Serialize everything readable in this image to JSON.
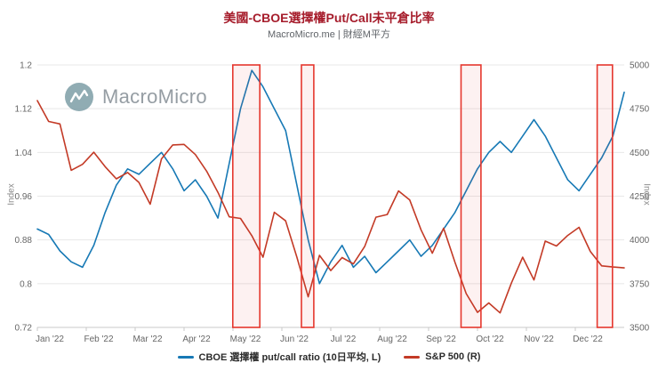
{
  "header": {
    "title": "美國-CBOE選擇權Put/Call未平倉比率",
    "subtitle": "MacroMicro.me | 財經M平方"
  },
  "watermark": {
    "text": "MacroMicro",
    "logo": "macromicro-wave-circle"
  },
  "colors": {
    "title": "#a61c2b",
    "series_blue": "#1779b5",
    "series_red": "#c33a26",
    "band_fill": "rgba(232,62,54,0.07)",
    "band_border": "#e5372e",
    "grid": "#e8e8e8",
    "tick_text": "#666666"
  },
  "chart_data": {
    "type": "line",
    "title": "美國-CBOE選擇權Put/Call未平倉比率",
    "subtitle": "MacroMicro.me | 財經M平方",
    "grid": "horizontal",
    "legend_position": "bottom",
    "x_tick_labels": [
      "Jan '22",
      "Feb '22",
      "Mar '22",
      "Apr '22",
      "May '22",
      "Jun '22",
      "Jul '22",
      "Aug '22",
      "Sep '22",
      "Oct '22",
      "Nov '22",
      "Dec '22"
    ],
    "left_axis": {
      "label": "Index",
      "range": [
        0.72,
        1.2
      ],
      "ticks": [
        "1.2",
        "1.12",
        "1.04",
        "0.96",
        "0.88",
        "0.8",
        "0.72"
      ]
    },
    "right_axis": {
      "label": "Index",
      "range": [
        3500,
        5000
      ],
      "ticks": [
        "5000",
        "4750",
        "4500",
        "4250",
        "4000",
        "3750",
        "3500"
      ]
    },
    "series": [
      {
        "name": "CBOE 選擇權 put/call ratio (10日平均, L)",
        "axis": "left",
        "color": "#1779b5",
        "values": [
          0.9,
          0.89,
          0.86,
          0.84,
          0.83,
          0.87,
          0.93,
          0.98,
          1.01,
          1.0,
          1.02,
          1.04,
          1.01,
          0.97,
          0.99,
          0.96,
          0.92,
          1.02,
          1.12,
          1.19,
          1.16,
          1.12,
          1.08,
          0.98,
          0.88,
          0.8,
          0.84,
          0.87,
          0.83,
          0.85,
          0.82,
          0.84,
          0.86,
          0.88,
          0.85,
          0.87,
          0.9,
          0.93,
          0.97,
          1.01,
          1.04,
          1.06,
          1.04,
          1.07,
          1.1,
          1.07,
          1.03,
          0.99,
          0.97,
          1.0,
          1.03,
          1.07,
          1.15
        ]
      },
      {
        "name": "S&P 500 (R)",
        "axis": "right",
        "color": "#c33a26",
        "values": [
          4796,
          4677,
          4663,
          4398,
          4432,
          4501,
          4419,
          4349,
          4385,
          4329,
          4204,
          4463,
          4543,
          4546,
          4488,
          4393,
          4272,
          4132,
          4123,
          4024,
          3901,
          4158,
          4109,
          3901,
          3675,
          3912,
          3825,
          3899,
          3863,
          3962,
          4130,
          4145,
          4280,
          4228,
          4058,
          3924,
          4067,
          3873,
          3693,
          3586,
          3640,
          3583,
          3753,
          3901,
          3771,
          3993,
          3965,
          4026,
          4072,
          3934,
          3852,
          3845,
          3840
        ]
      }
    ],
    "highlight_bands": [
      {
        "from": 0.333,
        "to": 0.379
      },
      {
        "from": 0.45,
        "to": 0.471
      },
      {
        "from": 0.722,
        "to": 0.756
      },
      {
        "from": 0.954,
        "to": 0.98
      }
    ],
    "highlight_style": {
      "fill": "rgba(232,62,54,0.07)",
      "stroke": "#e5372e"
    }
  }
}
